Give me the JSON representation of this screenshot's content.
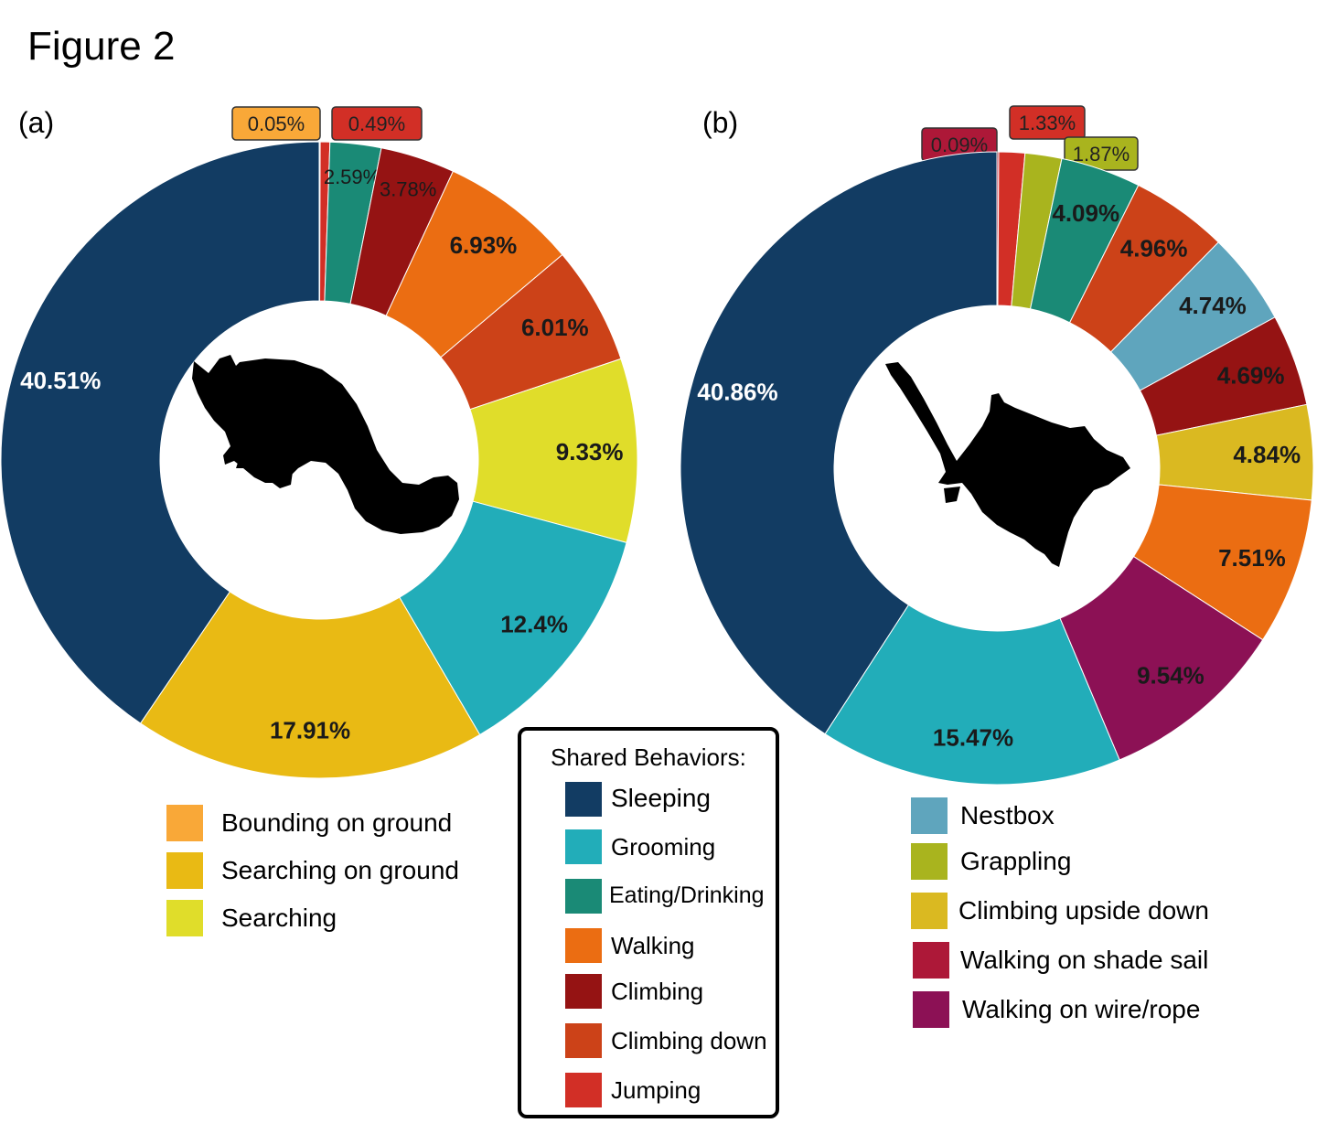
{
  "figure_title": "Figure 2",
  "panels": {
    "a": {
      "label": "(a)"
    },
    "b": {
      "label": "(b)"
    }
  },
  "colors": {
    "Sleeping": "#123c63",
    "Grooming": "#22adb9",
    "Eating/Drinking": "#1a8a76",
    "Walking": "#eb6d12",
    "Climbing": "#951313",
    "Climbing down": "#cc4218",
    "Jumping": "#d22f26",
    "Bounding on ground": "#f9a838",
    "Searching on ground": "#e9ba14",
    "Searching": "#e0dd2a",
    "Nestbox": "#5fa5bd",
    "Grappling": "#a9b41e",
    "Climbing upside down": "#dab921",
    "Walking on shade sail": "#ad1838",
    "Walking on wire/rope": "#8c1155"
  },
  "chart_data": [
    {
      "type": "pie",
      "panel": "(a)",
      "donut": true,
      "slices": [
        {
          "label": "Bounding on ground",
          "value": 0.05,
          "text": "0.05%"
        },
        {
          "label": "Jumping",
          "value": 0.49,
          "text": "0.49%"
        },
        {
          "label": "Eating/Drinking",
          "value": 2.59,
          "text": "2.59%"
        },
        {
          "label": "Climbing",
          "value": 3.78,
          "text": "3.78%"
        },
        {
          "label": "Walking",
          "value": 6.93,
          "text": "6.93%"
        },
        {
          "label": "Climbing down",
          "value": 6.01,
          "text": "6.01%"
        },
        {
          "label": "Searching",
          "value": 9.33,
          "text": "9.33%"
        },
        {
          "label": "Grooming",
          "value": 12.4,
          "text": "12.4%"
        },
        {
          "label": "Searching on ground",
          "value": 17.91,
          "text": "17.91%"
        },
        {
          "label": "Sleeping",
          "value": 40.51,
          "text": "40.51%"
        }
      ]
    },
    {
      "type": "pie",
      "panel": "(b)",
      "donut": true,
      "slices": [
        {
          "label": "Walking on shade sail",
          "value": 0.09,
          "text": "0.09%"
        },
        {
          "label": "Jumping",
          "value": 1.33,
          "text": "1.33%"
        },
        {
          "label": "Grappling",
          "value": 1.87,
          "text": "1.87%"
        },
        {
          "label": "Eating/Drinking",
          "value": 4.09,
          "text": "4.09%"
        },
        {
          "label": "Climbing down",
          "value": 4.96,
          "text": "4.96%"
        },
        {
          "label": "Nestbox",
          "value": 4.74,
          "text": "4.74%"
        },
        {
          "label": "Climbing",
          "value": 4.69,
          "text": "4.69%"
        },
        {
          "label": "Climbing upside down",
          "value": 4.84,
          "text": "4.84%"
        },
        {
          "label": "Walking",
          "value": 7.51,
          "text": "7.51%"
        },
        {
          "label": "Walking on wire/rope",
          "value": 9.54,
          "text": "9.54%"
        },
        {
          "label": "Grooming",
          "value": 15.47,
          "text": "15.47%"
        },
        {
          "label": "Sleeping",
          "value": 40.86,
          "text": "40.86%"
        }
      ]
    }
  ],
  "legend_a": [
    "Bounding on ground",
    "Searching on ground",
    "Searching"
  ],
  "legend_shared": {
    "title": "Shared Behaviors:",
    "items": [
      "Sleeping",
      "Grooming",
      "Eating/Drinking",
      "Walking",
      "Climbing",
      "Climbing down",
      "Jumping"
    ]
  },
  "legend_b": [
    "Nestbox",
    "Grappling",
    "Climbing upside down",
    "Walking on shade sail",
    "Walking on wire/rope"
  ]
}
